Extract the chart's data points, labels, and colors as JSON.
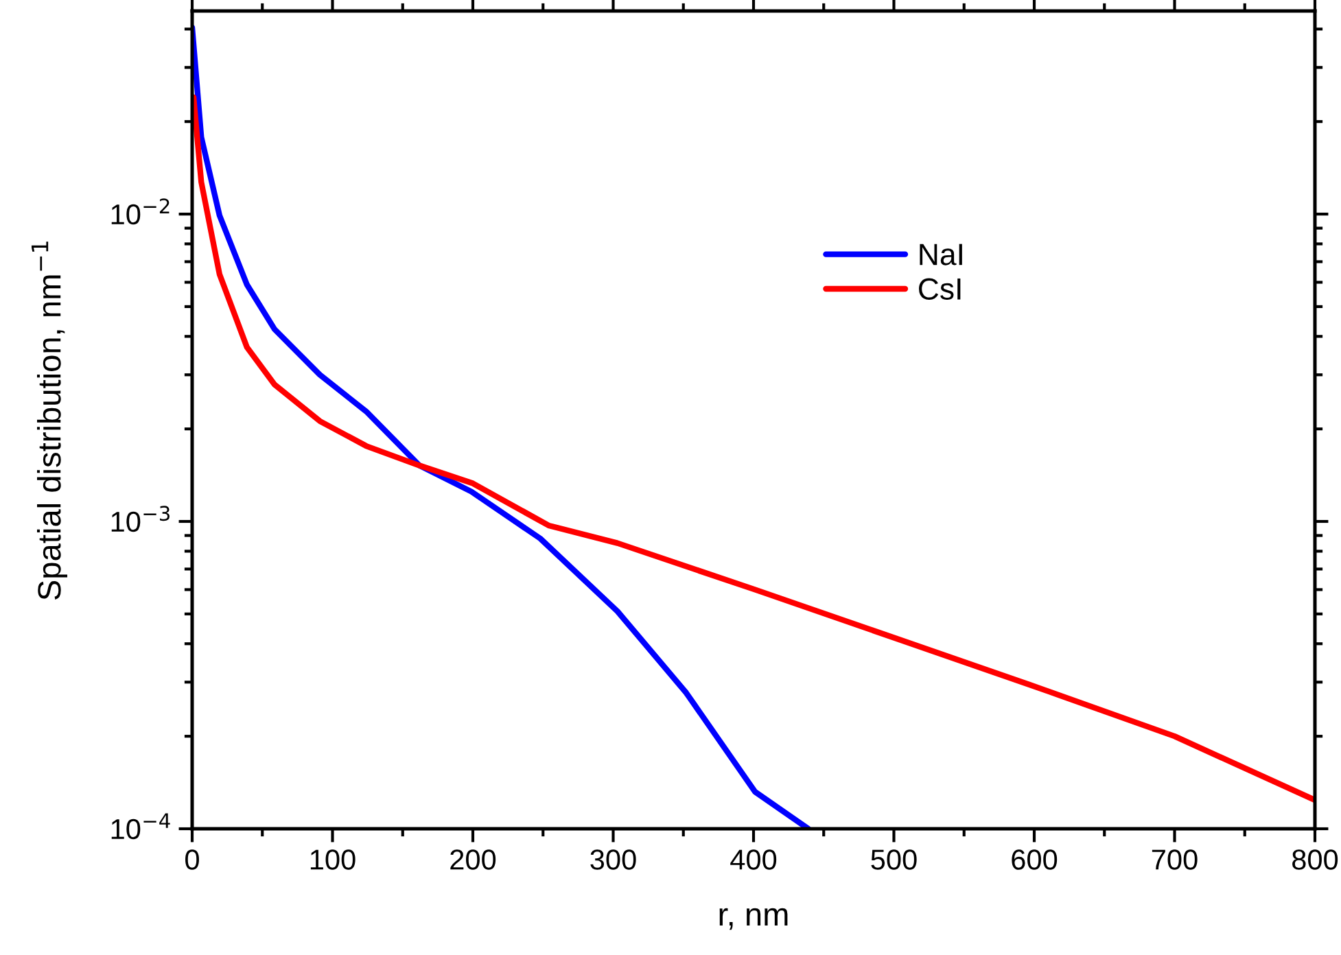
{
  "chart_data": {
    "type": "line",
    "xlabel": "r, nm",
    "ylabel": "Spatial distribution, nm$^{−1}$",
    "log": "y",
    "xlim": [
      0,
      800
    ],
    "xticks": [
      0,
      100,
      200,
      300,
      400,
      500,
      600,
      700,
      800
    ],
    "ylim": [
      0.0001,
      0.0458
    ],
    "yticks": [
      {
        "value": 0.0001,
        "label": "10$^{−4}$"
      },
      {
        "value": 0.001,
        "label": "10$^{−3}$"
      },
      {
        "value": 0.01,
        "label": "10$^{−2}$"
      }
    ],
    "legend": "top right",
    "grid": false,
    "marker": "none",
    "line_style": "solid",
    "series": [
      {
        "name": "NaI",
        "color": "#0000ff",
        "x": [
          0,
          6.5,
          19.5,
          39,
          58.7,
          91,
          124,
          162,
          199,
          248,
          303,
          352,
          401,
          439
        ],
        "values": [
          0.0405,
          0.0178,
          0.0099,
          0.0059,
          0.00422,
          0.003,
          0.00228,
          0.00152,
          0.00125,
          0.00088,
          0.00051,
          0.000277,
          0.000132,
          0.0001
        ]
      },
      {
        "name": "CsI",
        "color": "#ff0000",
        "x": [
          1,
          6.5,
          19.5,
          39,
          58.7,
          91,
          124,
          162,
          200,
          254,
          303,
          401,
          499,
          597,
          700,
          800
        ],
        "values": [
          0.024,
          0.0127,
          0.00637,
          0.00369,
          0.00279,
          0.00212,
          0.00176,
          0.00152,
          0.00133,
          0.00097,
          0.00085,
          0.0006,
          0.00042,
          0.000294,
          0.0002,
          0.000124
        ]
      }
    ]
  }
}
